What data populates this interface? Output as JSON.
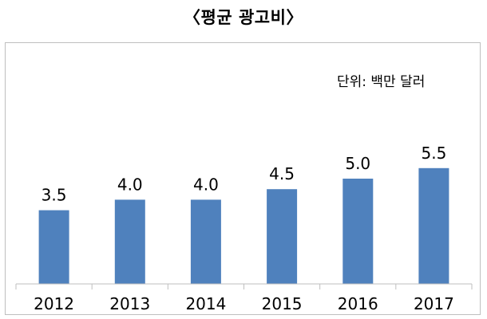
{
  "title": "〈평균 광고비〉",
  "unit_label": "단위: 백만 달러",
  "colors": {
    "bar": "#4f81bd",
    "axis": "#bfbfbf",
    "frame": "#bfbfbf"
  },
  "chart_data": {
    "type": "bar",
    "title": "〈평균 광고비〉",
    "unit": "단위: 백만 달러",
    "categories": [
      "2012",
      "2013",
      "2014",
      "2015",
      "2016",
      "2017"
    ],
    "values": [
      3.5,
      4.0,
      4.0,
      4.5,
      5.0,
      5.5
    ],
    "value_labels": [
      "3.5",
      "4.0",
      "4.0",
      "4.5",
      "5.0",
      "5.5"
    ],
    "ylim": [
      0,
      8.5
    ],
    "grid": false,
    "legend": "none"
  }
}
